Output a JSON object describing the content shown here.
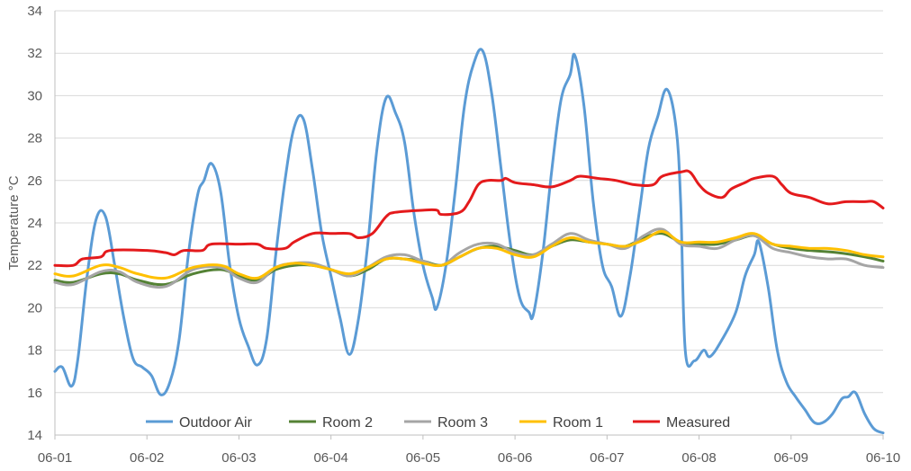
{
  "chart_data": {
    "type": "line",
    "title": "",
    "xlabel": "",
    "ylabel": "Temperature °C",
    "categories": [
      "06-01",
      "06-02",
      "06-03",
      "06-04",
      "06-05",
      "06-06",
      "06-07",
      "06-08",
      "06-09",
      "06-10"
    ],
    "xlim": [
      0,
      9
    ],
    "ylim": [
      14,
      34
    ],
    "yticks": [
      14,
      16,
      18,
      20,
      22,
      24,
      26,
      28,
      30,
      32,
      34
    ],
    "grid": "horizontal",
    "legend": "bottom",
    "series": [
      {
        "name": "Outdoor Air",
        "color": "#5B9BD5",
        "points": [
          [
            0.0,
            17.0
          ],
          [
            0.08,
            17.2
          ],
          [
            0.18,
            16.3
          ],
          [
            0.25,
            17.6
          ],
          [
            0.35,
            21.5
          ],
          [
            0.45,
            24.2
          ],
          [
            0.55,
            24.3
          ],
          [
            0.65,
            22.0
          ],
          [
            0.75,
            19.5
          ],
          [
            0.85,
            17.6
          ],
          [
            0.95,
            17.2
          ],
          [
            1.05,
            16.8
          ],
          [
            1.15,
            15.9
          ],
          [
            1.25,
            16.5
          ],
          [
            1.35,
            18.5
          ],
          [
            1.45,
            22.5
          ],
          [
            1.55,
            25.3
          ],
          [
            1.62,
            26.0
          ],
          [
            1.7,
            26.8
          ],
          [
            1.8,
            25.5
          ],
          [
            1.9,
            22.0
          ],
          [
            2.0,
            19.5
          ],
          [
            2.1,
            18.2
          ],
          [
            2.2,
            17.3
          ],
          [
            2.3,
            18.5
          ],
          [
            2.4,
            22.5
          ],
          [
            2.5,
            26.0
          ],
          [
            2.6,
            28.5
          ],
          [
            2.7,
            28.9
          ],
          [
            2.8,
            26.5
          ],
          [
            2.9,
            23.5
          ],
          [
            3.0,
            21.5
          ],
          [
            3.1,
            19.5
          ],
          [
            3.2,
            17.8
          ],
          [
            3.3,
            19.5
          ],
          [
            3.4,
            23.0
          ],
          [
            3.5,
            27.5
          ],
          [
            3.6,
            29.9
          ],
          [
            3.7,
            29.2
          ],
          [
            3.8,
            27.8
          ],
          [
            3.9,
            24.5
          ],
          [
            4.0,
            22.0
          ],
          [
            4.1,
            20.5
          ],
          [
            4.15,
            20.0
          ],
          [
            4.25,
            22.0
          ],
          [
            4.35,
            25.5
          ],
          [
            4.45,
            29.5
          ],
          [
            4.55,
            31.5
          ],
          [
            4.65,
            32.1
          ],
          [
            4.75,
            30.0
          ],
          [
            4.85,
            26.5
          ],
          [
            4.95,
            23.0
          ],
          [
            5.05,
            20.5
          ],
          [
            5.15,
            19.8
          ],
          [
            5.2,
            19.7
          ],
          [
            5.3,
            22.5
          ],
          [
            5.4,
            26.5
          ],
          [
            5.5,
            29.8
          ],
          [
            5.6,
            31.0
          ],
          [
            5.65,
            31.9
          ],
          [
            5.75,
            29.5
          ],
          [
            5.85,
            25.0
          ],
          [
            5.95,
            22.0
          ],
          [
            6.05,
            21.0
          ],
          [
            6.15,
            19.6
          ],
          [
            6.25,
            21.5
          ],
          [
            6.35,
            24.5
          ],
          [
            6.45,
            27.5
          ],
          [
            6.55,
            29.0
          ],
          [
            6.65,
            30.3
          ],
          [
            6.75,
            28.5
          ],
          [
            6.8,
            25.0
          ],
          [
            6.85,
            18.0
          ],
          [
            6.95,
            17.5
          ],
          [
            7.05,
            18.0
          ],
          [
            7.12,
            17.7
          ],
          [
            7.25,
            18.5
          ],
          [
            7.4,
            19.8
          ],
          [
            7.5,
            21.5
          ],
          [
            7.6,
            22.5
          ],
          [
            7.65,
            23.1
          ],
          [
            7.75,
            21.0
          ],
          [
            7.85,
            18.0
          ],
          [
            7.95,
            16.5
          ],
          [
            8.05,
            15.8
          ],
          [
            8.15,
            15.2
          ],
          [
            8.25,
            14.6
          ],
          [
            8.35,
            14.6
          ],
          [
            8.45,
            15.0
          ],
          [
            8.55,
            15.7
          ],
          [
            8.62,
            15.8
          ],
          [
            8.7,
            16.0
          ],
          [
            8.8,
            15.0
          ],
          [
            8.9,
            14.3
          ],
          [
            9.0,
            14.1
          ]
        ]
      },
      {
        "name": "Room 2",
        "color": "#548235",
        "points": [
          [
            0.0,
            21.3
          ],
          [
            0.2,
            21.2
          ],
          [
            0.5,
            21.6
          ],
          [
            0.7,
            21.6
          ],
          [
            0.9,
            21.3
          ],
          [
            1.2,
            21.1
          ],
          [
            1.5,
            21.6
          ],
          [
            1.8,
            21.8
          ],
          [
            2.0,
            21.5
          ],
          [
            2.2,
            21.3
          ],
          [
            2.4,
            21.8
          ],
          [
            2.6,
            22.0
          ],
          [
            2.8,
            22.0
          ],
          [
            3.0,
            21.8
          ],
          [
            3.2,
            21.5
          ],
          [
            3.4,
            21.8
          ],
          [
            3.6,
            22.3
          ],
          [
            3.8,
            22.3
          ],
          [
            4.0,
            22.2
          ],
          [
            4.2,
            22.0
          ],
          [
            4.4,
            22.4
          ],
          [
            4.6,
            22.8
          ],
          [
            4.8,
            22.9
          ],
          [
            5.0,
            22.7
          ],
          [
            5.2,
            22.5
          ],
          [
            5.4,
            22.9
          ],
          [
            5.6,
            23.2
          ],
          [
            5.8,
            23.1
          ],
          [
            6.0,
            23.0
          ],
          [
            6.2,
            22.9
          ],
          [
            6.4,
            23.3
          ],
          [
            6.6,
            23.5
          ],
          [
            6.8,
            23.1
          ],
          [
            7.0,
            23.0
          ],
          [
            7.2,
            23.0
          ],
          [
            7.4,
            23.2
          ],
          [
            7.6,
            23.4
          ],
          [
            7.8,
            23.0
          ],
          [
            8.0,
            22.8
          ],
          [
            8.2,
            22.7
          ],
          [
            8.5,
            22.6
          ],
          [
            8.8,
            22.4
          ],
          [
            9.0,
            22.2
          ]
        ]
      },
      {
        "name": "Room 3",
        "color": "#A5A5A5",
        "points": [
          [
            0.0,
            21.2
          ],
          [
            0.2,
            21.1
          ],
          [
            0.5,
            21.7
          ],
          [
            0.7,
            21.7
          ],
          [
            0.9,
            21.2
          ],
          [
            1.2,
            21.0
          ],
          [
            1.5,
            21.8
          ],
          [
            1.8,
            21.9
          ],
          [
            2.0,
            21.4
          ],
          [
            2.2,
            21.2
          ],
          [
            2.4,
            21.9
          ],
          [
            2.6,
            22.1
          ],
          [
            2.8,
            22.1
          ],
          [
            3.0,
            21.8
          ],
          [
            3.2,
            21.5
          ],
          [
            3.4,
            21.9
          ],
          [
            3.6,
            22.4
          ],
          [
            3.8,
            22.5
          ],
          [
            4.0,
            22.2
          ],
          [
            4.2,
            22.0
          ],
          [
            4.4,
            22.6
          ],
          [
            4.6,
            23.0
          ],
          [
            4.8,
            23.0
          ],
          [
            5.0,
            22.6
          ],
          [
            5.2,
            22.5
          ],
          [
            5.4,
            23.0
          ],
          [
            5.6,
            23.5
          ],
          [
            5.8,
            23.2
          ],
          [
            6.0,
            23.0
          ],
          [
            6.2,
            22.8
          ],
          [
            6.4,
            23.4
          ],
          [
            6.6,
            23.7
          ],
          [
            6.8,
            23.0
          ],
          [
            7.0,
            22.9
          ],
          [
            7.2,
            22.8
          ],
          [
            7.4,
            23.2
          ],
          [
            7.6,
            23.4
          ],
          [
            7.8,
            22.8
          ],
          [
            8.0,
            22.6
          ],
          [
            8.2,
            22.4
          ],
          [
            8.4,
            22.3
          ],
          [
            8.6,
            22.3
          ],
          [
            8.8,
            22.0
          ],
          [
            9.0,
            21.9
          ]
        ]
      },
      {
        "name": "Room 1",
        "color": "#FFC000",
        "points": [
          [
            0.0,
            21.6
          ],
          [
            0.2,
            21.5
          ],
          [
            0.5,
            22.0
          ],
          [
            0.7,
            21.9
          ],
          [
            0.9,
            21.6
          ],
          [
            1.2,
            21.4
          ],
          [
            1.5,
            21.9
          ],
          [
            1.8,
            22.0
          ],
          [
            2.0,
            21.6
          ],
          [
            2.2,
            21.4
          ],
          [
            2.4,
            21.9
          ],
          [
            2.6,
            22.1
          ],
          [
            2.8,
            22.0
          ],
          [
            3.0,
            21.8
          ],
          [
            3.2,
            21.6
          ],
          [
            3.4,
            21.9
          ],
          [
            3.6,
            22.3
          ],
          [
            3.8,
            22.3
          ],
          [
            4.0,
            22.1
          ],
          [
            4.2,
            22.0
          ],
          [
            4.4,
            22.4
          ],
          [
            4.6,
            22.8
          ],
          [
            4.8,
            22.8
          ],
          [
            5.0,
            22.5
          ],
          [
            5.2,
            22.4
          ],
          [
            5.4,
            22.9
          ],
          [
            5.6,
            23.3
          ],
          [
            5.8,
            23.1
          ],
          [
            6.0,
            23.0
          ],
          [
            6.2,
            22.9
          ],
          [
            6.4,
            23.2
          ],
          [
            6.6,
            23.6
          ],
          [
            6.8,
            23.1
          ],
          [
            7.0,
            23.1
          ],
          [
            7.2,
            23.1
          ],
          [
            7.4,
            23.3
          ],
          [
            7.6,
            23.5
          ],
          [
            7.8,
            23.0
          ],
          [
            8.0,
            22.9
          ],
          [
            8.2,
            22.8
          ],
          [
            8.4,
            22.8
          ],
          [
            8.6,
            22.7
          ],
          [
            8.8,
            22.5
          ],
          [
            9.0,
            22.4
          ]
        ]
      },
      {
        "name": "Measured",
        "color": "#E41A1C",
        "points": [
          [
            0.0,
            22.0
          ],
          [
            0.2,
            22.0
          ],
          [
            0.3,
            22.3
          ],
          [
            0.5,
            22.4
          ],
          [
            0.6,
            22.7
          ],
          [
            1.0,
            22.7
          ],
          [
            1.2,
            22.6
          ],
          [
            1.3,
            22.5
          ],
          [
            1.4,
            22.7
          ],
          [
            1.6,
            22.7
          ],
          [
            1.7,
            23.0
          ],
          [
            2.0,
            23.0
          ],
          [
            2.2,
            23.0
          ],
          [
            2.3,
            22.8
          ],
          [
            2.5,
            22.8
          ],
          [
            2.6,
            23.1
          ],
          [
            2.8,
            23.5
          ],
          [
            3.0,
            23.5
          ],
          [
            3.2,
            23.5
          ],
          [
            3.3,
            23.3
          ],
          [
            3.45,
            23.5
          ],
          [
            3.6,
            24.3
          ],
          [
            3.7,
            24.5
          ],
          [
            4.0,
            24.6
          ],
          [
            4.15,
            24.6
          ],
          [
            4.2,
            24.4
          ],
          [
            4.4,
            24.5
          ],
          [
            4.5,
            25.0
          ],
          [
            4.6,
            25.8
          ],
          [
            4.7,
            26.0
          ],
          [
            4.85,
            26.0
          ],
          [
            4.9,
            26.1
          ],
          [
            5.0,
            25.9
          ],
          [
            5.2,
            25.8
          ],
          [
            5.4,
            25.7
          ],
          [
            5.6,
            26.0
          ],
          [
            5.7,
            26.2
          ],
          [
            5.9,
            26.1
          ],
          [
            6.1,
            26.0
          ],
          [
            6.3,
            25.8
          ],
          [
            6.5,
            25.8
          ],
          [
            6.6,
            26.2
          ],
          [
            6.8,
            26.4
          ],
          [
            6.9,
            26.4
          ],
          [
            7.0,
            25.8
          ],
          [
            7.1,
            25.4
          ],
          [
            7.25,
            25.2
          ],
          [
            7.35,
            25.6
          ],
          [
            7.5,
            25.9
          ],
          [
            7.6,
            26.1
          ],
          [
            7.8,
            26.2
          ],
          [
            7.9,
            25.8
          ],
          [
            8.0,
            25.4
          ],
          [
            8.2,
            25.2
          ],
          [
            8.4,
            24.9
          ],
          [
            8.6,
            25.0
          ],
          [
            8.8,
            25.0
          ],
          [
            8.9,
            25.0
          ],
          [
            9.0,
            24.7
          ]
        ]
      }
    ]
  }
}
